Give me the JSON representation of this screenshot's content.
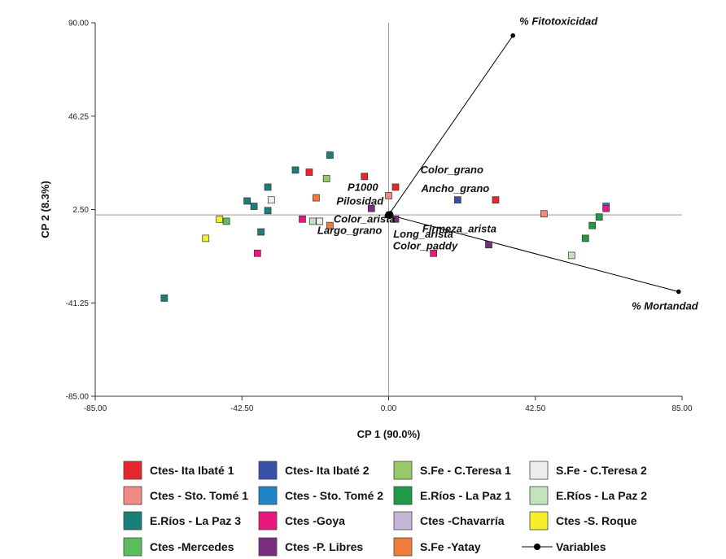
{
  "chart_data": {
    "type": "scatter",
    "xlabel": "CP 1 (90.0%)",
    "ylabel": "CP 2 (8.3%)",
    "xlim": [
      -85,
      85
    ],
    "ylim": [
      -85,
      90
    ],
    "x_ticks": [
      "-85.00",
      "-42.50",
      "0.00",
      "42.50",
      "85.00"
    ],
    "y_ticks": [
      "90.00",
      "46.25",
      "2.50",
      "-41.25",
      "-85.00"
    ],
    "x_tick_values": [
      -85,
      -42.5,
      0,
      42.5,
      85
    ],
    "y_tick_values": [
      90,
      46.25,
      2.5,
      -41.25,
      -85
    ],
    "reference_lines": {
      "x": 0,
      "y": 0
    },
    "grid": false,
    "legend_position": "bottom",
    "series": [
      {
        "name": "Ctes- Ita Ibaté 1",
        "color": "#e8262e",
        "points": [
          [
            -23,
            20
          ],
          [
            -7,
            18
          ],
          [
            2,
            13
          ],
          [
            31,
            7
          ]
        ]
      },
      {
        "name": "Ctes - Sto. Tomé 1",
        "color": "#f08a82",
        "points": [
          [
            0,
            9
          ],
          [
            45,
            0.5
          ]
        ]
      },
      {
        "name": "E.Ríos - La Paz 3",
        "color": "#1a7f78",
        "points": [
          [
            -27,
            21
          ],
          [
            -17,
            28
          ],
          [
            -35,
            13
          ],
          [
            -41,
            6.5
          ],
          [
            -39,
            4
          ],
          [
            -35,
            2
          ],
          [
            -37,
            -8
          ],
          [
            -65,
            -39
          ]
        ]
      },
      {
        "name": "Ctes -Mercedes",
        "color": "#5cbd5c",
        "points": [
          [
            -47,
            -3
          ]
        ]
      },
      {
        "name": "Ctes- Ita Ibaté 2",
        "color": "#3850a8",
        "points": [
          [
            20,
            7
          ]
        ]
      },
      {
        "name": "Ctes - Sto. Tomé 2",
        "color": "#1e86c8",
        "points": [
          [
            63,
            4
          ]
        ]
      },
      {
        "name": "Ctes -Goya",
        "color": "#e8197e",
        "points": [
          [
            -25,
            -2
          ],
          [
            -38,
            -18
          ],
          [
            13,
            -18
          ],
          [
            63,
            3
          ]
        ]
      },
      {
        "name": "Ctes -P. Libres",
        "color": "#7b2d7f",
        "points": [
          [
            -5,
            3
          ],
          [
            2,
            -2
          ],
          [
            29,
            -14
          ]
        ]
      },
      {
        "name": "S.Fe - C.Teresa 1",
        "color": "#99ca6a",
        "points": [
          [
            -18,
            17
          ]
        ]
      },
      {
        "name": "E.Ríos - La Paz 1",
        "color": "#1f9a47",
        "points": [
          [
            61,
            -1
          ],
          [
            59,
            -5
          ],
          [
            57,
            -11
          ]
        ]
      },
      {
        "name": "Ctes -Chavarría",
        "color": "#c5b5d9",
        "points": [
          [
            -20,
            -3
          ]
        ]
      },
      {
        "name": "S.Fe -Yatay",
        "color": "#f07c3c",
        "points": [
          [
            -21,
            8
          ],
          [
            -17,
            -5
          ]
        ]
      },
      {
        "name": "S.Fe - C.Teresa 2",
        "color": "#ededed",
        "points": [
          [
            -34,
            7
          ],
          [
            -20,
            -3
          ]
        ]
      },
      {
        "name": "E.Ríos - La Paz 2",
        "color": "#c2e3bc",
        "points": [
          [
            -22,
            -3
          ],
          [
            53,
            -19
          ]
        ]
      },
      {
        "name": "Ctes -S. Roque",
        "color": "#f4ee2c",
        "points": [
          [
            -49,
            -2
          ],
          [
            -53,
            -11
          ]
        ]
      }
    ],
    "variables": {
      "name": "Variables",
      "vectors": [
        {
          "label": "% Fitotoxicidad",
          "x": 36,
          "y": 84
        },
        {
          "label": "% Mortandad",
          "x": 84,
          "y": -36
        },
        {
          "label": "Color_grano",
          "x": 0.5,
          "y": 0.8
        },
        {
          "label": "Ancho_grano",
          "x": 0.7,
          "y": 0.4
        },
        {
          "label": "P1000",
          "x": -0.2,
          "y": 0.6
        },
        {
          "label": "Pilosidad",
          "x": -0.3,
          "y": 0.3
        },
        {
          "label": "Color_arista",
          "x": -0.4,
          "y": -0.2
        },
        {
          "label": "Largo_grano",
          "x": -0.5,
          "y": -0.5
        },
        {
          "label": "Firmeza_arista",
          "x": 0.8,
          "y": -0.5
        },
        {
          "label": "Long_arista",
          "x": 0.4,
          "y": -0.7
        },
        {
          "label": "Color_paddy",
          "x": 0.3,
          "y": -0.9
        }
      ]
    }
  }
}
